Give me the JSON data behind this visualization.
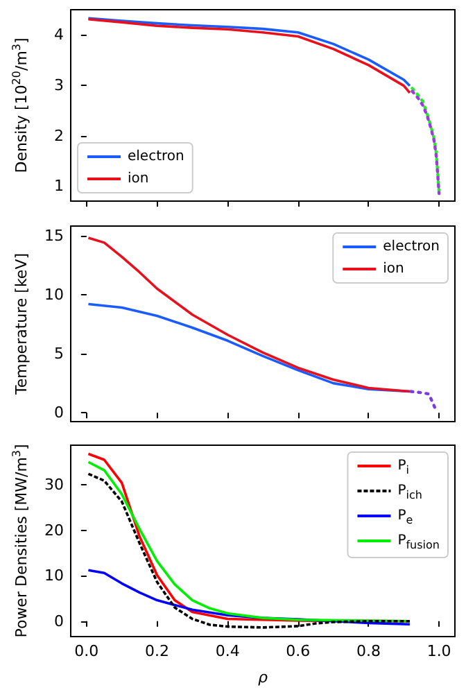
{
  "chart_data": [
    {
      "type": "line",
      "ylabel": "Density [10$^{20}$/m$^{3}$]",
      "xlim": [
        -0.045,
        1.045
      ],
      "xticks": [
        0,
        0.2,
        0.4,
        0.6,
        0.8,
        1.0
      ],
      "ylim": [
        0.7,
        4.5
      ],
      "yticks": [
        1,
        2,
        3,
        4
      ],
      "tick_labels": "y",
      "legend": "bottom left",
      "series": [
        {
          "name": "electron",
          "color": "#1a5cff",
          "x": [
            0.005,
            0.1,
            0.2,
            0.3,
            0.4,
            0.5,
            0.6,
            0.7,
            0.8,
            0.9,
            0.917
          ],
          "values": [
            4.33,
            4.28,
            4.23,
            4.19,
            4.16,
            4.12,
            4.05,
            3.82,
            3.51,
            3.11,
            2.99
          ]
        },
        {
          "name": "ion",
          "color": "#e8101c",
          "x": [
            0.005,
            0.1,
            0.2,
            0.3,
            0.4,
            0.5,
            0.6,
            0.7,
            0.8,
            0.9,
            0.917
          ],
          "values": [
            4.31,
            4.25,
            4.18,
            4.14,
            4.11,
            4.05,
            3.97,
            3.72,
            3.4,
            2.99,
            2.85
          ]
        },
        {
          "color": "#22ee22",
          "line_style": "dotted",
          "x": [
            0.924,
            0.941,
            0.954,
            0.966,
            0.976,
            0.986,
            0.992,
            0.996,
            1.0
          ],
          "values": [
            2.94,
            2.8,
            2.68,
            2.44,
            2.21,
            1.94,
            1.66,
            1.29,
            0.88
          ]
        },
        {
          "color": "#9a3ce0",
          "line_style": "dotted",
          "x": [
            0.924,
            0.941,
            0.954,
            0.966,
            0.976,
            0.986,
            0.992,
            0.996,
            1.0
          ],
          "values": [
            2.88,
            2.74,
            2.6,
            2.4,
            2.17,
            1.9,
            1.6,
            1.25,
            0.85
          ]
        }
      ]
    },
    {
      "type": "line",
      "ylabel": "Temperature [keV]",
      "xlim": [
        -0.045,
        1.045
      ],
      "xticks": [
        0,
        0.2,
        0.4,
        0.6,
        0.8,
        1.0
      ],
      "ylim": [
        -0.75,
        15.8
      ],
      "yticks": [
        0,
        5,
        10,
        15
      ],
      "tick_labels": "y",
      "legend": "top right",
      "series": [
        {
          "name": "electron",
          "color": "#1a5cff",
          "x": [
            0.005,
            0.1,
            0.2,
            0.3,
            0.4,
            0.5,
            0.6,
            0.7,
            0.8,
            0.917
          ],
          "values": [
            9.2,
            8.9,
            8.2,
            7.2,
            6.1,
            4.8,
            3.6,
            2.5,
            2.0,
            1.8
          ]
        },
        {
          "name": "ion",
          "color": "#e8101c",
          "x": [
            0.005,
            0.05,
            0.1,
            0.15,
            0.2,
            0.3,
            0.4,
            0.5,
            0.6,
            0.7,
            0.8,
            0.917
          ],
          "values": [
            14.8,
            14.4,
            13.2,
            11.9,
            10.5,
            8.3,
            6.6,
            5.1,
            3.8,
            2.8,
            2.1,
            1.8
          ]
        },
        {
          "color": "#7a3ce0",
          "line_style": "dotted",
          "x": [
            0.92,
            0.95,
            0.97,
            0.98,
            0.99
          ],
          "values": [
            1.8,
            1.7,
            1.6,
            1.0,
            0.3
          ]
        }
      ]
    },
    {
      "type": "line",
      "xlabel": "ρ",
      "ylabel": "Power Densities [MW/m$^{3}$]",
      "xlim": [
        -0.045,
        1.045
      ],
      "xticks": [
        {
          "value": 0,
          "label": "0.0"
        },
        0.2,
        0.4,
        0.6,
        0.8,
        {
          "value": 1,
          "label": "1.0"
        }
      ],
      "ylim": [
        -3.4,
        38.7
      ],
      "yticks": [
        0,
        10,
        20,
        30
      ],
      "legend": "top right",
      "series": [
        {
          "name": "P$_{i}$",
          "color": "#ff0000",
          "x": [
            0.005,
            0.05,
            0.1,
            0.15,
            0.2,
            0.25,
            0.3,
            0.4,
            0.6,
            0.917
          ],
          "values": [
            36.8,
            35.5,
            30.4,
            18.7,
            10.1,
            4.6,
            2.0,
            0.5,
            0.1,
            0
          ]
        },
        {
          "name": "P$_{ich}$",
          "color": "#000000",
          "line_style": "dashed",
          "x": [
            0.005,
            0.05,
            0.1,
            0.15,
            0.2,
            0.25,
            0.3,
            0.35,
            0.4,
            0.5,
            0.6,
            0.65,
            0.7,
            0.8,
            0.917
          ],
          "values": [
            32.4,
            30.9,
            26.3,
            17.2,
            8.6,
            3.0,
            0.5,
            -0.8,
            -1.2,
            -1.4,
            -1.1,
            -0.5,
            -0.2,
            0,
            0
          ]
        },
        {
          "name": "P$_{e}$",
          "color": "#0000ff",
          "x": [
            0.005,
            0.05,
            0.1,
            0.15,
            0.2,
            0.3,
            0.4,
            0.5,
            0.6,
            0.7,
            0.8,
            0.917
          ],
          "values": [
            11.2,
            10.6,
            8.3,
            6.3,
            4.6,
            2.5,
            1.3,
            0.7,
            0.4,
            0,
            -0.4,
            -0.7
          ]
        },
        {
          "name": "P$_{fusion}$",
          "color": "#00ee00",
          "x": [
            0.005,
            0.05,
            0.1,
            0.15,
            0.2,
            0.25,
            0.3,
            0.35,
            0.4,
            0.5,
            0.6,
            0.917
          ],
          "values": [
            35.0,
            33.2,
            27.9,
            20.3,
            13.2,
            8.1,
            4.6,
            2.8,
            1.7,
            0.7,
            0.3,
            0
          ]
        }
      ]
    }
  ]
}
